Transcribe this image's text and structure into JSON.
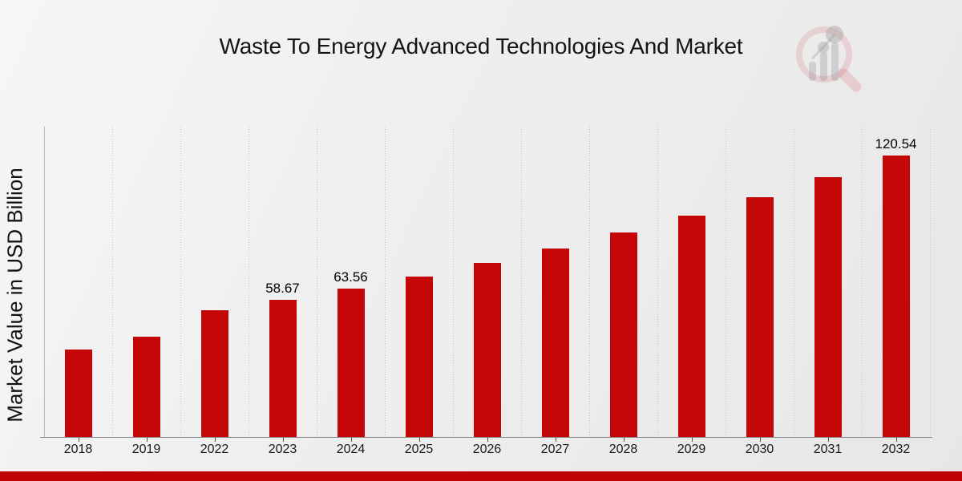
{
  "header": {
    "title": "Waste To Energy Advanced Technologies And Market"
  },
  "chart_data": {
    "type": "bar",
    "title": "Waste To Energy Advanced Technologies And Market",
    "xlabel": "",
    "ylabel": "Market Value in USD Billion",
    "categories": [
      "2018",
      "2019",
      "2022",
      "2023",
      "2024",
      "2025",
      "2026",
      "2027",
      "2028",
      "2029",
      "2030",
      "2031",
      "2032"
    ],
    "values": [
      37.6,
      42.9,
      54.16,
      58.67,
      63.56,
      68.86,
      74.6,
      80.81,
      87.55,
      94.84,
      102.74,
      111.3,
      120.54
    ],
    "point_labels": [
      "",
      "",
      "",
      "58.67",
      "63.56",
      "",
      "",
      "",
      "",
      "",
      "",
      "",
      "120.54"
    ],
    "ylim": [
      0,
      133
    ],
    "y_ticks_visible": false,
    "grid": "vertical-dotted",
    "legend": "none",
    "colors": {
      "bar": "#c40606",
      "bar_label": "#000000",
      "axis_line": "#7d7d7d",
      "tick": "#4d4d4d",
      "gridline": "#c6c6c6",
      "footer_strip": "#c00303",
      "title_text": "#141414"
    }
  }
}
